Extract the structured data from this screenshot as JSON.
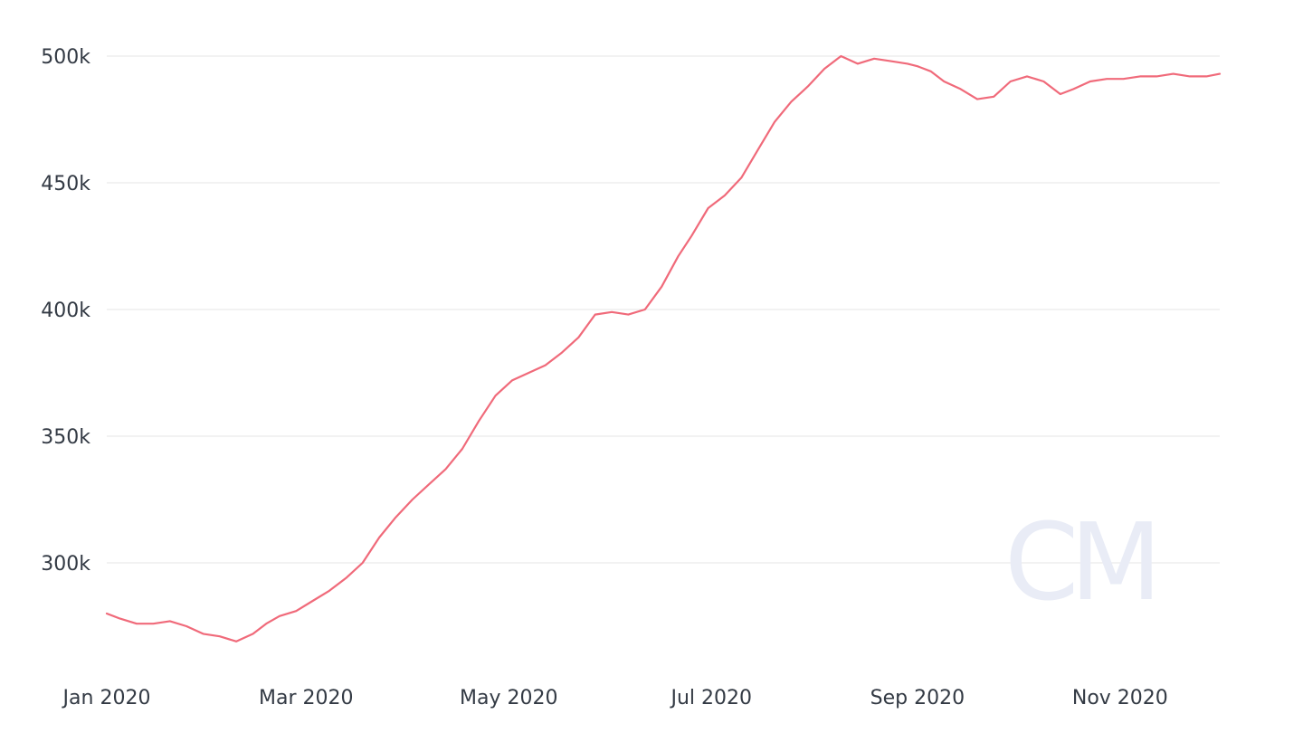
{
  "watermark": {
    "text": "CM"
  },
  "chart_data": {
    "type": "line",
    "title": "",
    "xlabel": "",
    "ylabel": "",
    "grid": true,
    "legend": "none",
    "xlim": [
      "2020-01-01",
      "2020-12-01"
    ],
    "ylim": [
      260000,
      500000
    ],
    "yticks": [
      {
        "value": 300000,
        "label": "300k"
      },
      {
        "value": 350000,
        "label": "350k"
      },
      {
        "value": 400000,
        "label": "400k"
      },
      {
        "value": 450000,
        "label": "450k"
      },
      {
        "value": 500000,
        "label": "500k"
      }
    ],
    "xticks": [
      {
        "value": "2020-01-01",
        "label": "Jan 2020"
      },
      {
        "value": "2020-03-01",
        "label": "Mar 2020"
      },
      {
        "value": "2020-05-01",
        "label": "May 2020"
      },
      {
        "value": "2020-07-01",
        "label": "Jul 2020"
      },
      {
        "value": "2020-09-01",
        "label": "Sep 2020"
      },
      {
        "value": "2020-11-01",
        "label": "Nov 2020"
      }
    ],
    "colors": {
      "line": "#f06a7a",
      "grid": "#e6e6e6",
      "text": "#333a44",
      "watermark": "#e9ecf6"
    },
    "series": [
      {
        "x": [
          "2020-01-01",
          "2020-01-05",
          "2020-01-10",
          "2020-01-15",
          "2020-01-20",
          "2020-01-25",
          "2020-01-30",
          "2020-02-04",
          "2020-02-09",
          "2020-02-14",
          "2020-02-18",
          "2020-02-22",
          "2020-02-27",
          "2020-03-03",
          "2020-03-08",
          "2020-03-13",
          "2020-03-18",
          "2020-03-23",
          "2020-03-28",
          "2020-04-02",
          "2020-04-07",
          "2020-04-12",
          "2020-04-17",
          "2020-04-22",
          "2020-04-27",
          "2020-05-02",
          "2020-05-07",
          "2020-05-12",
          "2020-05-17",
          "2020-05-22",
          "2020-05-27",
          "2020-06-01",
          "2020-06-06",
          "2020-06-11",
          "2020-06-16",
          "2020-06-21",
          "2020-06-25",
          "2020-06-30",
          "2020-07-05",
          "2020-07-10",
          "2020-07-15",
          "2020-07-20",
          "2020-07-25",
          "2020-07-30",
          "2020-08-04",
          "2020-08-09",
          "2020-08-14",
          "2020-08-19",
          "2020-08-24",
          "2020-08-29",
          "2020-09-01",
          "2020-09-05",
          "2020-09-09",
          "2020-09-14",
          "2020-09-19",
          "2020-09-24",
          "2020-09-29",
          "2020-10-04",
          "2020-10-09",
          "2020-10-14",
          "2020-10-18",
          "2020-10-23",
          "2020-10-28",
          "2020-11-02",
          "2020-11-07",
          "2020-11-12",
          "2020-11-17",
          "2020-11-22",
          "2020-11-27",
          "2020-12-01"
        ],
        "y": [
          280000,
          278000,
          276000,
          276000,
          277000,
          275000,
          272000,
          271000,
          269000,
          272000,
          276000,
          279000,
          281000,
          285000,
          289000,
          294000,
          300000,
          310000,
          318000,
          325000,
          331000,
          337000,
          345000,
          356000,
          366000,
          372000,
          375000,
          378000,
          383000,
          389000,
          398000,
          399000,
          398000,
          400000,
          409000,
          421000,
          429000,
          440000,
          445000,
          452000,
          463000,
          474000,
          482000,
          488000,
          495000,
          500000,
          497000,
          499000,
          498000,
          497000,
          496000,
          494000,
          490000,
          487000,
          483000,
          484000,
          490000,
          492000,
          490000,
          485000,
          487000,
          490000,
          491000,
          491000,
          492000,
          492000,
          493000,
          492000,
          492000,
          493000
        ]
      }
    ]
  }
}
